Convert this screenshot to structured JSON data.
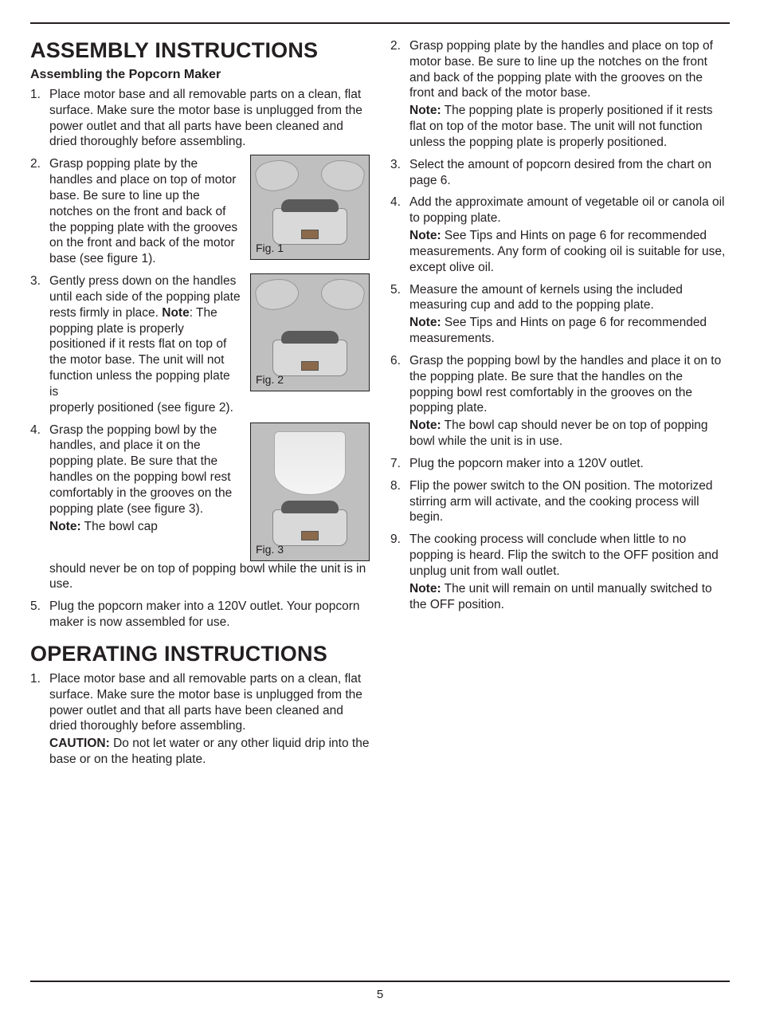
{
  "page_number": "5",
  "colors": {
    "text": "#231f20",
    "rule": "#231f20",
    "fig_border": "#231f20",
    "fig_bg": "#bfbfbf"
  },
  "typography": {
    "body_pt": 15.5,
    "h1_pt": 27,
    "sub_pt": 16,
    "line_height": 1.28
  },
  "left": {
    "section1_title": "ASSEMBLY INSTRUCTIONS",
    "section1_sub": "Assembling the Popcorn Maker",
    "fig1_label": "Fig. 1",
    "fig2_label": "Fig. 2",
    "fig3_label": "Fig. 3",
    "steps1": {
      "s1": "Place motor base and all removable parts on a clean, flat surface.  Make sure the motor base is unplugged from the power outlet and that all parts have been cleaned and dried thoroughly before assembling.",
      "s2": "Grasp popping plate by the handles and place on top of motor base. Be sure to line up the notches on the front and back of the popping plate with the grooves on the front and back of the motor base (see figure 1).",
      "s3a": "Gently press down on the handles until each side of the popping plate rests firmly in place. ",
      "s3_note_label": "Note",
      "s3b": ": The popping plate is properly positioned if it rests flat on top of the motor base. The unit will not function unless the popping plate is",
      "s3c": "properly positioned (see figure 2).",
      "s4a": "Grasp the popping bowl by the handles, and place it on the popping plate. Be sure that the handles on the popping bowl rest comfortably in the grooves on the popping plate (see figure 3).",
      "s4_note_label": "Note:",
      "s4b": " The bowl cap",
      "s4c": "should never be on top of popping bowl while the unit is in use.",
      "s5": "Plug the popcorn maker into a 120V outlet. Your popcorn maker is now assembled for use."
    },
    "section2_title": "OPERATING INSTRUCTIONS",
    "steps2": {
      "s1": "Place motor base and all removable parts on a clean, flat surface.  Make sure the motor base is unplugged from the power outlet and that all parts have been cleaned and dried thoroughly before assembling.",
      "s1_caution_label": "CAUTION:",
      "s1_caution": " Do not let water or any other liquid drip into the base or on the heating plate."
    }
  },
  "right": {
    "steps": {
      "s2a": "Grasp popping plate by the handles and place on top of motor base. Be sure to line up the notches on the front and back of the popping plate with the grooves on the front and back of the motor base.",
      "s2_note_label": "Note:",
      "s2b": " The popping plate is properly positioned if it rests flat on top of the motor base. The unit will not function unless the popping plate is properly positioned.",
      "s3": "Select the amount of popcorn desired from the chart on page 6.",
      "s4a": "Add the approximate amount of vegetable oil or canola oil to popping plate.",
      "s4_note_label": "Note:",
      "s4b": " See Tips and Hints on page 6 for recommended measurements.  Any form of cooking oil is suitable for use, except olive oil.",
      "s5a": "Measure  the amount of kernels using the included measuring cup and add to the popping plate.",
      "s5_note_label": "Note:",
      "s5b": " See Tips and Hints on page 6 for recommended measurements.",
      "s6a": "Grasp the popping bowl by the handles and place it on to the popping plate. Be sure that the handles on the popping bowl rest comfortably in the grooves on the popping plate.",
      "s6_note_label": "Note:",
      "s6b": " The bowl cap should never be on top of popping bowl while the unit is in use.",
      "s7": "Plug the popcorn maker into a 120V outlet.",
      "s8": "Flip the power switch to the ON position. The motorized stirring arm will activate, and the cooking process will begin.",
      "s9a": "The cooking process will conclude when little to no popping is heard. Flip the switch to the OFF position and unplug unit from wall outlet.",
      "s9_note_label": "Note:",
      "s9b": " The unit will remain on until manually switched to the OFF position."
    }
  }
}
